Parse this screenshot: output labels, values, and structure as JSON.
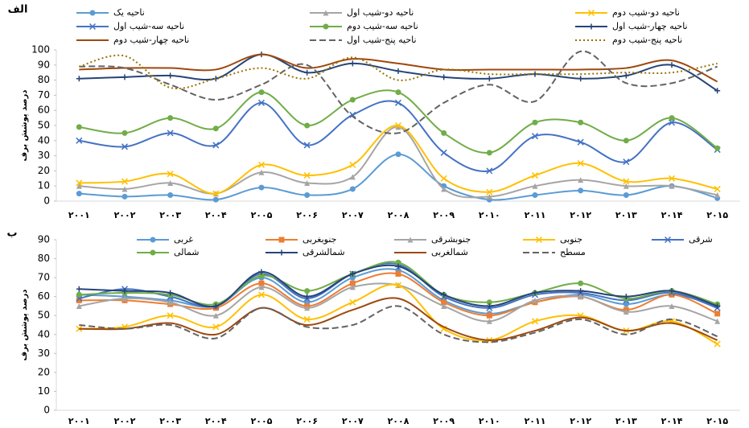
{
  "chart_data": [
    {
      "type": "line",
      "label": "الف",
      "ylabel": "درصد پوشش برف",
      "categories": [
        "۲۰۰۱",
        "۲۰۰۲",
        "۲۰۰۳",
        "۲۰۰۴",
        "۲۰۰۵",
        "۲۰۰۶",
        "۲۰۰۷",
        "۲۰۰۸",
        "۲۰۰۹",
        "۲۰۱۰",
        "۲۰۱۱",
        "۲۰۱۲",
        "۲۰۱۳",
        "۲۰۱۴",
        "۲۰۱۵"
      ],
      "ylim": [
        0,
        100
      ],
      "yticks": [
        0,
        10,
        20,
        30,
        40,
        50,
        60,
        70,
        80,
        90,
        100
      ],
      "grid": false,
      "legend": "top",
      "series": [
        {
          "name": "ناحیه یک",
          "color": "#5b9bd5",
          "marker": "circle",
          "values": [
            5,
            3,
            4,
            1,
            9,
            4,
            8,
            31,
            10,
            1,
            4,
            7,
            4,
            10,
            2
          ]
        },
        {
          "name": "ناحیه دو-شیب اول",
          "color": "#a5a5a5",
          "marker": "triangle",
          "values": [
            10,
            8,
            12,
            5,
            19,
            12,
            16,
            49,
            8,
            3,
            10,
            14,
            10,
            10,
            4
          ]
        },
        {
          "name": "ناحیه دو-شیب دوم",
          "color": "#ffc000",
          "marker": "x",
          "values": [
            12,
            13,
            18,
            5,
            24,
            17,
            24,
            50,
            15,
            6,
            17,
            25,
            13,
            15,
            8
          ]
        },
        {
          "name": "ناحیه سه-شیب اول",
          "color": "#4472c4",
          "marker": "x",
          "values": [
            40,
            36,
            45,
            37,
            65,
            37,
            57,
            65,
            32,
            20,
            43,
            39,
            26,
            52,
            34
          ]
        },
        {
          "name": "ناحیه سه-شیب دوم",
          "color": "#70ad47",
          "marker": "circle",
          "values": [
            49,
            45,
            55,
            48,
            72,
            50,
            67,
            72,
            45,
            32,
            52,
            52,
            40,
            55,
            35
          ]
        },
        {
          "name": "ناحیه چهار-شیب اول",
          "color": "#264478",
          "marker": "plus",
          "values": [
            81,
            82,
            83,
            81,
            97,
            85,
            91,
            86,
            82,
            81,
            84,
            81,
            83,
            90,
            73
          ]
        },
        {
          "name": "ناحیه چهار-شیب دوم",
          "color": "#9e480e",
          "marker": "none",
          "values": [
            87,
            88,
            88,
            87,
            97,
            88,
            94,
            91,
            87,
            87,
            87,
            87,
            88,
            93,
            79
          ]
        },
        {
          "name": "ناحیه پنج-شیب اول",
          "color": "#636363",
          "marker": "none",
          "dash": "dashed",
          "values": [
            89,
            88,
            77,
            67,
            77,
            90,
            56,
            45,
            65,
            77,
            66,
            99,
            78,
            78,
            89
          ]
        },
        {
          "name": "ناحیه پنج-شیب دوم",
          "color": "#997300",
          "marker": "none",
          "dash": "dotted",
          "values": [
            89,
            96,
            75,
            81,
            88,
            81,
            95,
            80,
            87,
            84,
            84,
            84,
            85,
            85,
            91
          ]
        }
      ]
    },
    {
      "type": "line",
      "label": "ب",
      "ylabel": "درصد پوشش برف",
      "categories": [
        "۲۰۰۱",
        "۲۰۰۲",
        "۲۰۰۳",
        "۲۰۰۴",
        "۲۰۰۵",
        "۲۰۰۶",
        "۲۰۰۷",
        "۲۰۰۸",
        "۲۰۰۹",
        "۲۰۱۰",
        "۲۰۱۱",
        "۲۰۱۲",
        "۲۰۱۳",
        "۲۰۱۴",
        "۲۰۱۵"
      ],
      "ylim": [
        0,
        90
      ],
      "yticks": [
        0,
        10,
        20,
        30,
        40,
        50,
        60,
        70,
        80,
        90
      ],
      "grid": false,
      "legend": "top",
      "series": [
        {
          "name": "غربی",
          "color": "#5b9bd5",
          "marker": "circle",
          "values": [
            61,
            60,
            58,
            55,
            70,
            57,
            70,
            74,
            58,
            51,
            57,
            61,
            56,
            61,
            55
          ]
        },
        {
          "name": "جنوبغربی",
          "color": "#ed7d31",
          "marker": "square",
          "values": [
            58,
            58,
            56,
            54,
            67,
            55,
            67,
            72,
            57,
            50,
            57,
            60,
            53,
            61,
            51
          ]
        },
        {
          "name": "جنوبشرقی",
          "color": "#a5a5a5",
          "marker": "triangle",
          "values": [
            55,
            59,
            57,
            50,
            65,
            54,
            65,
            66,
            55,
            47,
            58,
            60,
            52,
            55,
            47
          ]
        },
        {
          "name": "جنوبی",
          "color": "#ffc000",
          "marker": "x",
          "values": [
            43,
            44,
            50,
            44,
            61,
            48,
            57,
            66,
            43,
            37,
            47,
            50,
            42,
            47,
            35
          ]
        },
        {
          "name": "شرقی",
          "color": "#4472c4",
          "marker": "x",
          "values": [
            59,
            64,
            60,
            55,
            72,
            59,
            72,
            77,
            60,
            54,
            61,
            62,
            58,
            62,
            54
          ]
        },
        {
          "name": "شمالی",
          "color": "#70ad47",
          "marker": "circle",
          "values": [
            61,
            62,
            61,
            56,
            71,
            63,
            72,
            78,
            61,
            57,
            62,
            67,
            59,
            63,
            56
          ]
        },
        {
          "name": "شمالشرقی",
          "color": "#264478",
          "marker": "plus",
          "values": [
            64,
            63,
            62,
            55,
            73,
            60,
            72,
            76,
            61,
            55,
            62,
            63,
            60,
            63,
            55
          ]
        },
        {
          "name": "شمالغربی",
          "color": "#9e480e",
          "marker": "none",
          "values": [
            43,
            43,
            46,
            40,
            54,
            45,
            53,
            59,
            44,
            37,
            42,
            49,
            42,
            46,
            37
          ]
        },
        {
          "name": "مسطح",
          "color": "#636363",
          "marker": "none",
          "dash": "dashed",
          "values": [
            45,
            43,
            45,
            38,
            54,
            44,
            45,
            55,
            40,
            36,
            41,
            48,
            40,
            48,
            39
          ]
        }
      ]
    }
  ]
}
